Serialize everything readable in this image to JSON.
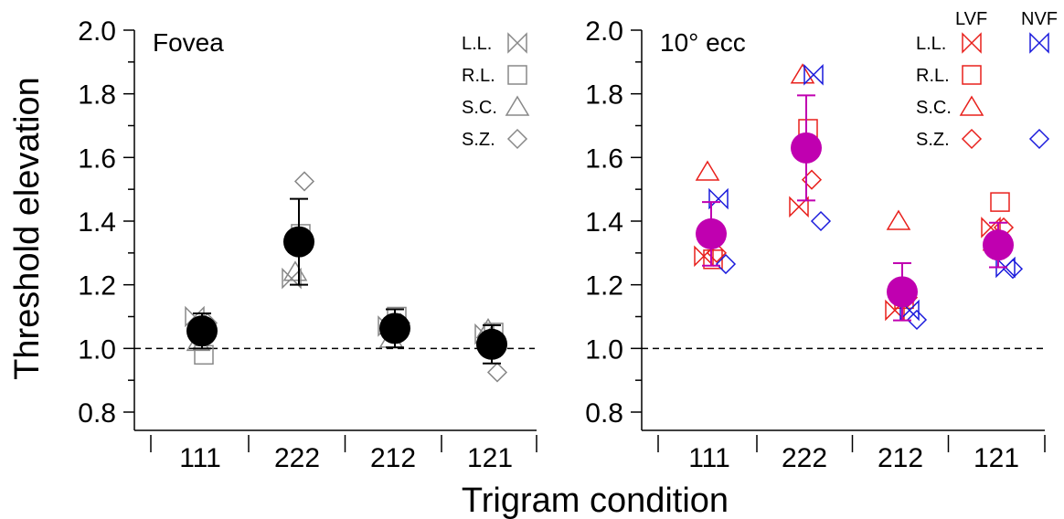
{
  "figure": {
    "ylabel": "Threshold elevation",
    "xlabel": "Trigram condition"
  },
  "chart_data": [
    {
      "type": "scatter",
      "title": "Fovea",
      "categories": [
        "111",
        "222",
        "212",
        "121"
      ],
      "ylim": [
        0.75,
        2.0
      ],
      "yticks": [
        "0.8",
        "1.0",
        "1.2",
        "1.4",
        "1.6",
        "1.8",
        "2.0"
      ],
      "reference_line": 1.0,
      "mean": {
        "color": "#000000",
        "values": [
          1.055,
          1.335,
          1.063,
          1.013
        ],
        "error": [
          0.055,
          0.135,
          0.06,
          0.06
        ]
      },
      "legend": [
        {
          "label": "L.L.",
          "marker": "bowtie"
        },
        {
          "label": "R.L.",
          "marker": "square"
        },
        {
          "label": "S.C.",
          "marker": "triangle"
        },
        {
          "label": "S.Z.",
          "marker": "diamond"
        }
      ],
      "series": [
        {
          "name": "L.L.",
          "marker": "bowtie",
          "color": "#888888",
          "values": [
            1.1,
            1.22,
            1.07,
            1.045
          ]
        },
        {
          "name": "R.L.",
          "marker": "square",
          "color": "#888888",
          "values": [
            0.98,
            1.36,
            1.1,
            1.05
          ]
        },
        {
          "name": "S.C.",
          "marker": "triangle",
          "color": "#888888",
          "values": [
            1.02,
            1.24,
            1.03,
            1.06
          ]
        },
        {
          "name": "S.Z.",
          "marker": "diamond",
          "color": "#888888",
          "values": [
            1.08,
            1.525,
            1.08,
            0.925
          ]
        }
      ]
    },
    {
      "type": "scatter",
      "title": "10° ecc",
      "categories": [
        "111",
        "222",
        "212",
        "121"
      ],
      "ylim": [
        0.75,
        2.0
      ],
      "yticks": [
        "0.8",
        "1.0",
        "1.2",
        "1.4",
        "1.6",
        "1.8",
        "2.0"
      ],
      "reference_line": 1.0,
      "mean": {
        "color": "#c000b0",
        "values": [
          1.36,
          1.63,
          1.178,
          1.325
        ],
        "error": [
          0.1,
          0.165,
          0.09,
          0.07
        ]
      },
      "legend_columns": [
        "LVF",
        "NVF"
      ],
      "legend": [
        {
          "label": "L.L.",
          "marker": "bowtie",
          "lvf": true,
          "nvf": true,
          "nvf_value_shown": null
        },
        {
          "label": "R.L.",
          "marker": "square",
          "lvf": true,
          "nvf": false
        },
        {
          "label": "S.C.",
          "marker": "triangle",
          "lvf": true,
          "nvf": false
        },
        {
          "label": "S.Z.",
          "marker": "diamond",
          "lvf": true,
          "nvf": true
        }
      ],
      "colors": {
        "LVF": "#e8201c",
        "NVF": "#1a1adc"
      },
      "series": [
        {
          "name": "L.L. LVF",
          "marker": "bowtie",
          "color": "#e8201c",
          "values": [
            1.29,
            1.445,
            1.12,
            1.38
          ]
        },
        {
          "name": "R.L. LVF",
          "marker": "square",
          "color": "#e8201c",
          "values": [
            1.28,
            1.69,
            1.155,
            1.46
          ]
        },
        {
          "name": "S.C. LVF",
          "marker": "triangle",
          "color": "#e8201c",
          "values": [
            1.555,
            1.86,
            1.4,
            1.335
          ]
        },
        {
          "name": "S.Z. LVF",
          "marker": "diamond",
          "color": "#e8201c",
          "values": [
            1.3,
            1.53,
            1.16,
            1.38
          ]
        },
        {
          "name": "L.L. NVF",
          "marker": "bowtie",
          "color": "#1a1adc",
          "values": [
            1.47,
            1.86,
            1.12,
            1.255
          ]
        },
        {
          "name": "S.Z. NVF",
          "marker": "diamond",
          "color": "#1a1adc",
          "values": [
            1.265,
            1.4,
            1.09,
            1.25
          ]
        }
      ]
    }
  ]
}
